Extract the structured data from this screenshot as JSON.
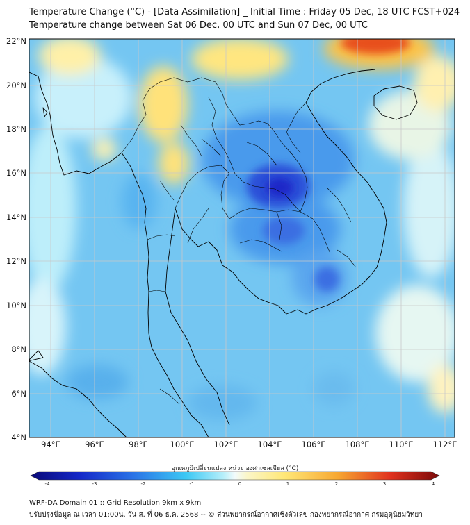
{
  "header": {
    "title_line1": "Temperature Change (°C) - [Data Assimilation] _ Initial Time : Friday 05 Dec, 18 UTC FCST+024",
    "title_line2": "Temperature change between Sat 06 Dec, 00 UTC and Sun 07 Dec, 00 UTC"
  },
  "map": {
    "lat_labels": [
      "22°N",
      "20°N",
      "18°N",
      "16°N",
      "14°N",
      "12°N",
      "10°N",
      "8°N",
      "6°N",
      "4°N"
    ],
    "lon_labels": [
      "94°E",
      "96°E",
      "98°E",
      "100°E",
      "102°E",
      "104°E",
      "106°E",
      "108°E",
      "110°E",
      "112°E"
    ],
    "colors": {
      "land": "#f3f7fa",
      "border": "#000000",
      "grid": "#c8c8c8",
      "cool_strong": "#1a28c8",
      "cool_mid": "#3c8cf0",
      "cool_light": "#96e6fa",
      "warm_light": "#ffeb96",
      "warm_mid": "#f7b83c",
      "warm_strong": "#e8321e"
    }
  },
  "colorbar": {
    "title": "อุณหภูมิเปลี่ยนแปลง หน่วย องศาเซลเซียส (°C)",
    "ticks": [
      "-4",
      "-3",
      "-2",
      "-1",
      "0",
      "1",
      "2",
      "3",
      "4"
    ]
  },
  "footer": {
    "line1": "WRF-DA Domain 01 :: Grid Resolution 9km x 9km",
    "line2": "ปรับปรุงข้อมูล ณ เวลา 01:00น. วัน ส. ที่ 06 ธ.ค. 2568 -- © ส่วนพยากรณ์อากาศเชิงตัวเลข กองพยากรณ์อากาศ กรมอุตุนิยมวิทยา"
  }
}
